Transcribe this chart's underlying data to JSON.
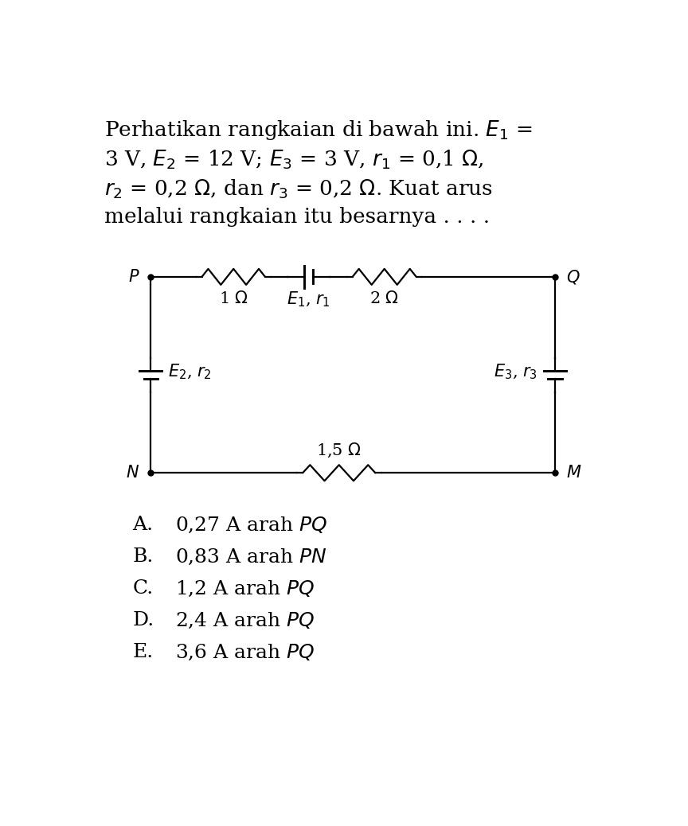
{
  "bg_color": "#ffffff",
  "text_color": "#000000",
  "circuit_color": "#000000",
  "para_line1": "Perhatikan rangkaian di bawah ini. $E_1$ =",
  "para_line2": "3 V, $E_2$ = 12 V; $E_3$ = 3 V, $r_1$ = 0,1 $\\Omega$,",
  "para_line3": "$r_2$ = 0,2 $\\Omega$, dan $r_3$ = 0,2 $\\Omega$. Kuat arus",
  "para_line4": "melalui rangkaian itu besarnya . . . .",
  "opt_labels": [
    "A.",
    "B.",
    "C.",
    "D.",
    "E."
  ],
  "opt_values": [
    "0,27 A arah ",
    "0,83 A arah ",
    "1,2 A arah ",
    "2,4 A arah ",
    "3,6 A arah "
  ],
  "opt_italics": [
    "$PQ$",
    "$PN$",
    "$PQ$",
    "$PQ$",
    "$PQ$"
  ],
  "font_size_para": 19,
  "font_size_opt": 18,
  "font_size_circuit": 15
}
